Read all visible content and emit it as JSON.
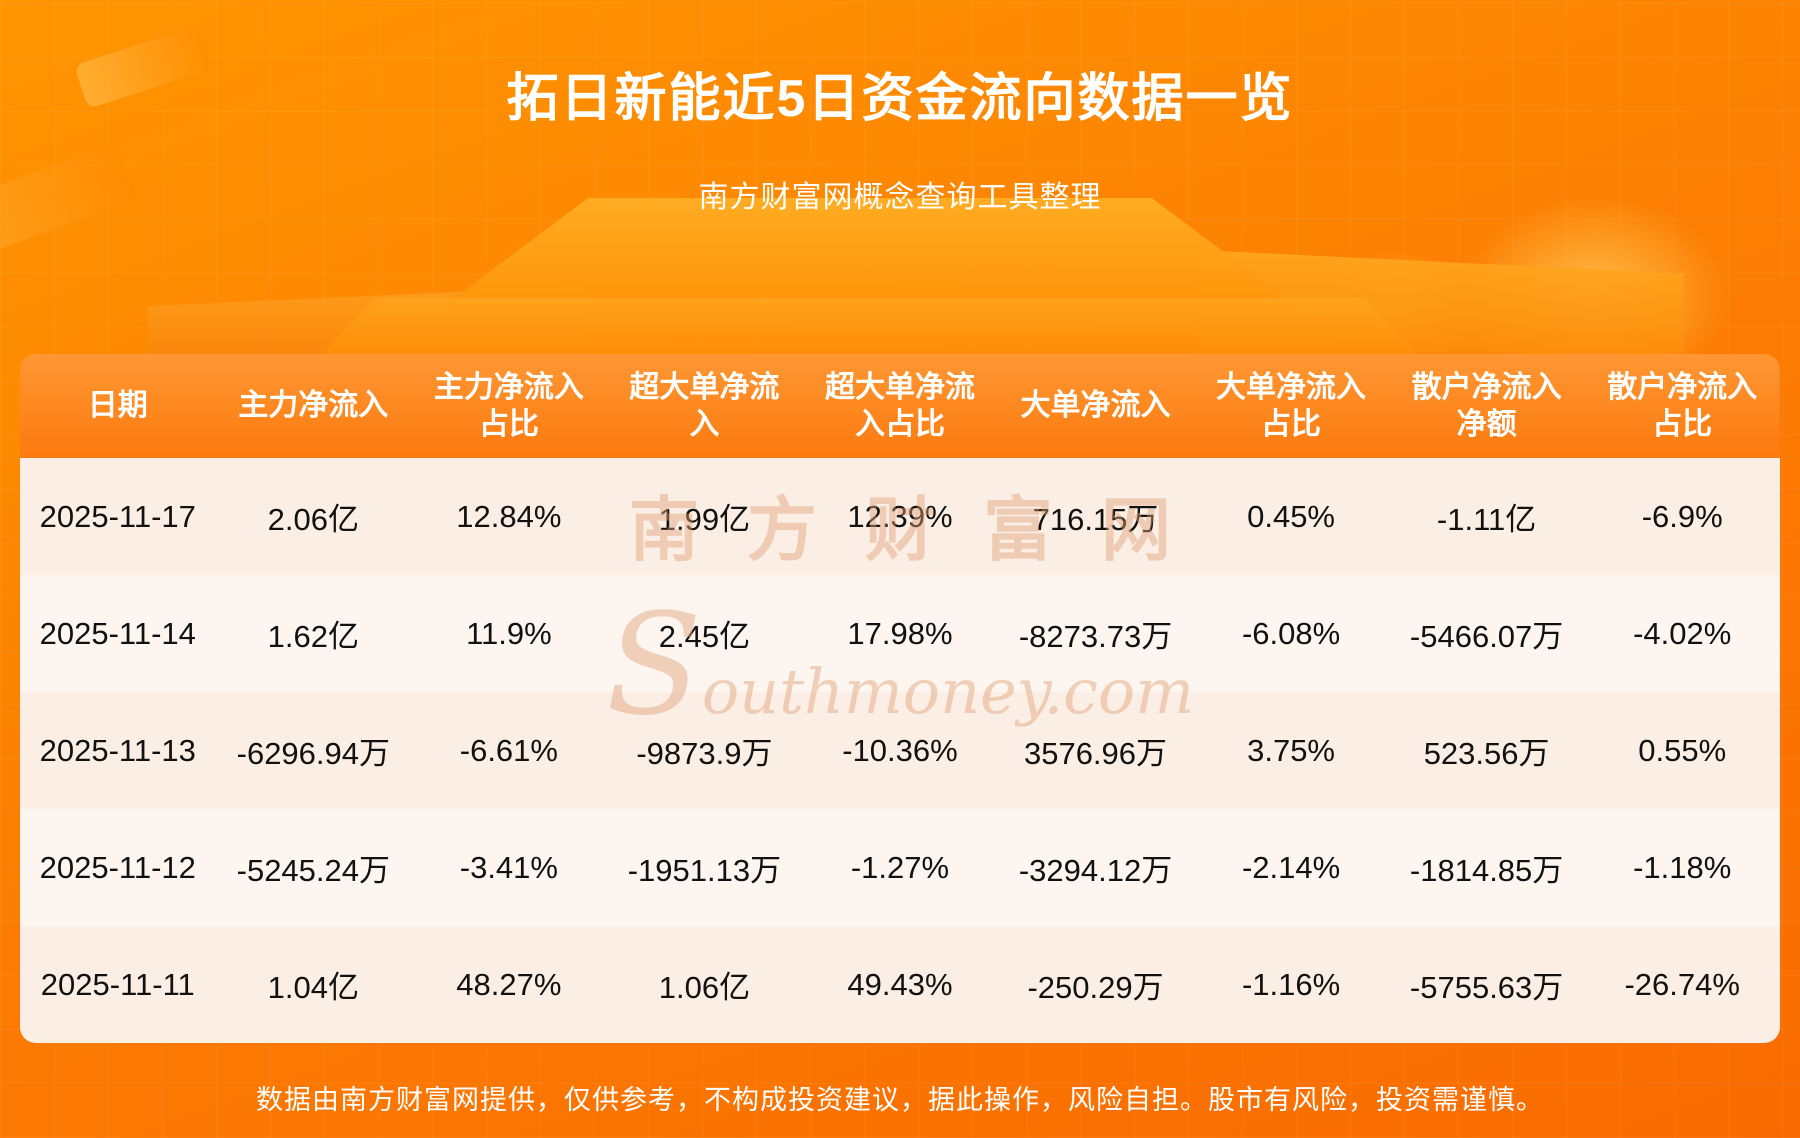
{
  "page": {
    "title": "拓日新能近5日资金流向数据一览",
    "subtitle": "南方财富网概念查询工具整理",
    "disclaimer": "数据由南方财富网提供，仅供参考，不构成投资建议，据此操作，风险自担。股市有风险，投资需谨慎。",
    "watermark_cn": "南方财富网",
    "watermark_en": "Southmoney.com"
  },
  "chart_data": {
    "type": "table",
    "title": "拓日新能近5日资金流向数据一览",
    "columns": [
      "日期",
      "主力净流入",
      "主力净流入占比",
      "超大单净流入",
      "超大单净流入占比",
      "大单净流入",
      "大单净流入占比",
      "散户净流入净额",
      "散户净流入占比"
    ],
    "rows": [
      [
        "2025-11-17",
        "2.06亿",
        "12.84%",
        "1.99亿",
        "12.39%",
        "716.15万",
        "0.45%",
        "-1.11亿",
        "-6.9%"
      ],
      [
        "2025-11-14",
        "1.62亿",
        "11.9%",
        "2.45亿",
        "17.98%",
        "-8273.73万",
        "-6.08%",
        "-5466.07万",
        "-4.02%"
      ],
      [
        "2025-11-13",
        "-6296.94万",
        "-6.61%",
        "-9873.9万",
        "-10.36%",
        "3576.96万",
        "3.75%",
        "523.56万",
        "0.55%"
      ],
      [
        "2025-11-12",
        "-5245.24万",
        "-3.41%",
        "-1951.13万",
        "-1.27%",
        "-3294.12万",
        "-2.14%",
        "-1814.85万",
        "-1.18%"
      ],
      [
        "2025-11-11",
        "1.04亿",
        "48.27%",
        "1.06亿",
        "49.43%",
        "-250.29万",
        "-1.16%",
        "-5755.63万",
        "-26.74%"
      ]
    ]
  },
  "colors": {
    "page_bg_top": "#ff9500",
    "page_bg_mid": "#fc7e03",
    "page_bg_bottom": "#f96b02",
    "header_grad_top": "#ff9734",
    "header_grad_bottom": "#fc7a0e",
    "row_odd": "#fbeee5",
    "row_even": "#fdf6f0",
    "table_text": "#111111",
    "title_text": "#ffffff",
    "watermark": "#dfa176"
  }
}
